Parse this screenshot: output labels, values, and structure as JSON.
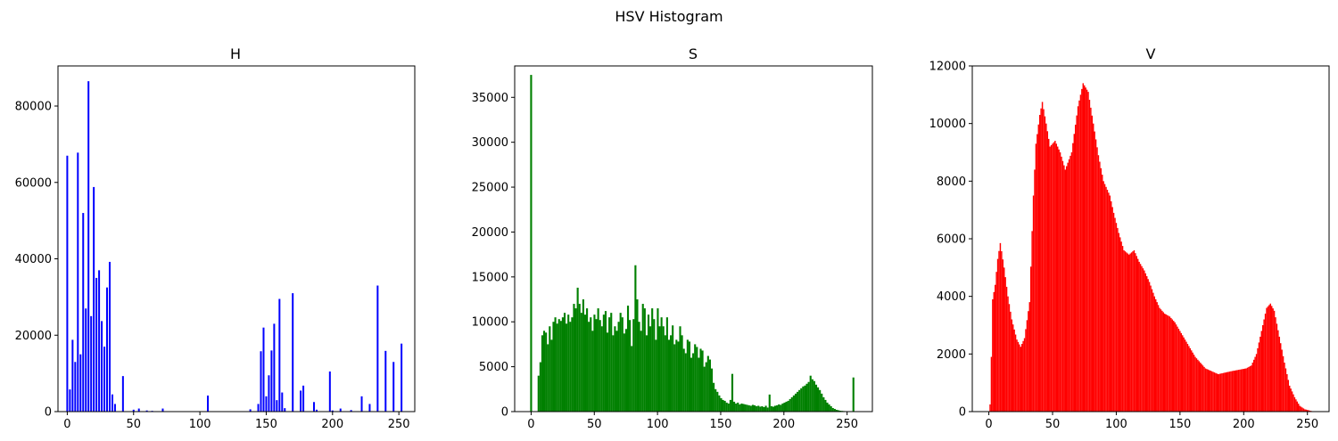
{
  "figure": {
    "title": "HSV Histogram"
  },
  "chart_data": [
    {
      "type": "bar",
      "title": "H",
      "color": "#0000ff",
      "xlim": [
        -7,
        262
      ],
      "ylim": [
        0,
        90500
      ],
      "xticks": [
        0,
        50,
        100,
        150,
        200,
        250
      ],
      "yticks": [
        0,
        20000,
        40000,
        60000,
        80000
      ],
      "x": [
        0,
        2,
        4,
        6,
        8,
        10,
        12,
        14,
        16,
        18,
        20,
        22,
        24,
        26,
        28,
        30,
        32,
        34,
        36,
        42,
        50,
        54,
        60,
        64,
        72,
        106,
        138,
        144,
        146,
        148,
        150,
        152,
        154,
        156,
        158,
        160,
        162,
        164,
        170,
        176,
        178,
        186,
        188,
        198,
        200,
        206,
        214,
        222,
        228,
        234,
        240,
        246,
        252
      ],
      "values": [
        67000,
        5800,
        18800,
        13000,
        67800,
        15000,
        52000,
        27000,
        86500,
        25000,
        58800,
        35000,
        37000,
        23700,
        17000,
        32500,
        39200,
        4500,
        2000,
        9300,
        500,
        800,
        300,
        200,
        800,
        4200,
        600,
        2000,
        15800,
        22000,
        4000,
        9500,
        16000,
        23000,
        3000,
        29500,
        5000,
        900,
        31000,
        5500,
        6800,
        2500,
        500,
        10500,
        300,
        800,
        400,
        4000,
        2000,
        33000,
        15900,
        13000,
        17800
      ]
    },
    {
      "type": "bar",
      "title": "S",
      "color": "#008000",
      "xlim": [
        -13,
        270
      ],
      "ylim": [
        0,
        38500
      ],
      "xticks": [
        0,
        50,
        100,
        150,
        200,
        250
      ],
      "yticks": [
        0,
        5000,
        10000,
        15000,
        20000,
        25000,
        30000,
        35000
      ],
      "series_generator": "hist",
      "values": [
        37500,
        0,
        0,
        0,
        4000,
        5500,
        8500,
        9000,
        8800,
        7500,
        9500,
        8000,
        10000,
        10500,
        9800,
        10300,
        10100,
        10500,
        11000,
        9800,
        10800,
        10000,
        10500,
        12000,
        11500,
        13800,
        12000,
        11000,
        12500,
        10800,
        11500,
        10000,
        10500,
        9000,
        10800,
        10300,
        11500,
        10200,
        9500,
        10800,
        11200,
        8800,
        10500,
        11000,
        8500,
        9500,
        9000,
        10000,
        11000,
        10500,
        8700,
        9200,
        11800,
        10200,
        7300,
        10300,
        16300,
        12500,
        10000,
        9000,
        12000,
        11500,
        8500,
        10800,
        9500,
        11500,
        10300,
        8000,
        11500,
        9500,
        10500,
        9500,
        8500,
        10500,
        8000,
        8500,
        9600,
        7500,
        8000,
        7800,
        9500,
        8500,
        7000,
        6500,
        8000,
        7800,
        6000,
        6500,
        7500,
        7200,
        6000,
        7000,
        6800,
        5000,
        5500,
        6200,
        5800,
        4800,
        3200,
        2500,
        2200,
        1800,
        1500,
        1300,
        1200,
        1000,
        900,
        1300,
        4200,
        1100,
        900,
        1000,
        800,
        900,
        850,
        800,
        750,
        700,
        650,
        750,
        700,
        600,
        650,
        550,
        600,
        500,
        650,
        450,
        1900,
        600,
        550,
        650,
        700,
        800,
        750,
        900,
        1000,
        1100,
        1200,
        1400,
        1600,
        1800,
        2000,
        2200,
        2400,
        2600,
        2800,
        2900,
        3100,
        3300,
        4000,
        3600,
        3400,
        3000,
        2700,
        2400,
        2000,
        1600,
        1300,
        1000,
        800,
        600,
        400,
        300,
        200,
        150,
        100,
        80,
        60,
        50,
        40,
        30,
        20,
        3800
      ]
    },
    {
      "type": "bar",
      "title": "V",
      "color": "#ff0000",
      "xlim": [
        -13,
        267
      ],
      "ylim": [
        0,
        12000
      ],
      "xticks": [
        0,
        50,
        100,
        150,
        200,
        250
      ],
      "yticks": [
        0,
        2000,
        4000,
        6000,
        8000,
        10000,
        12000
      ],
      "knots": [
        [
          0,
          0
        ],
        [
          1,
          250
        ],
        [
          2,
          1900
        ],
        [
          3,
          3900
        ],
        [
          5,
          4400
        ],
        [
          7,
          5300
        ],
        [
          9,
          5850
        ],
        [
          12,
          5000
        ],
        [
          15,
          4000
        ],
        [
          18,
          3200
        ],
        [
          22,
          2500
        ],
        [
          25,
          2250
        ],
        [
          28,
          2550
        ],
        [
          32,
          3800
        ],
        [
          35,
          7500
        ],
        [
          37,
          9300
        ],
        [
          40,
          10300
        ],
        [
          42,
          10750
        ],
        [
          45,
          10000
        ],
        [
          48,
          9200
        ],
        [
          52,
          9400
        ],
        [
          56,
          9000
        ],
        [
          60,
          8400
        ],
        [
          65,
          9000
        ],
        [
          70,
          10600
        ],
        [
          74,
          11400
        ],
        [
          78,
          11100
        ],
        [
          82,
          10000
        ],
        [
          86,
          8900
        ],
        [
          90,
          8000
        ],
        [
          95,
          7500
        ],
        [
          98,
          6900
        ],
        [
          102,
          6200
        ],
        [
          106,
          5600
        ],
        [
          110,
          5450
        ],
        [
          114,
          5600
        ],
        [
          118,
          5200
        ],
        [
          122,
          4900
        ],
        [
          126,
          4500
        ],
        [
          130,
          4000
        ],
        [
          134,
          3600
        ],
        [
          138,
          3400
        ],
        [
          142,
          3300
        ],
        [
          146,
          3100
        ],
        [
          150,
          2800
        ],
        [
          154,
          2500
        ],
        [
          158,
          2200
        ],
        [
          162,
          1900
        ],
        [
          166,
          1700
        ],
        [
          170,
          1500
        ],
        [
          175,
          1400
        ],
        [
          180,
          1300
        ],
        [
          185,
          1350
        ],
        [
          190,
          1400
        ],
        [
          196,
          1450
        ],
        [
          202,
          1500
        ],
        [
          206,
          1600
        ],
        [
          210,
          2000
        ],
        [
          214,
          2800
        ],
        [
          218,
          3600
        ],
        [
          221,
          3750
        ],
        [
          224,
          3500
        ],
        [
          228,
          2600
        ],
        [
          232,
          1700
        ],
        [
          236,
          900
        ],
        [
          240,
          500
        ],
        [
          244,
          200
        ],
        [
          248,
          80
        ],
        [
          255,
          0
        ]
      ]
    }
  ]
}
